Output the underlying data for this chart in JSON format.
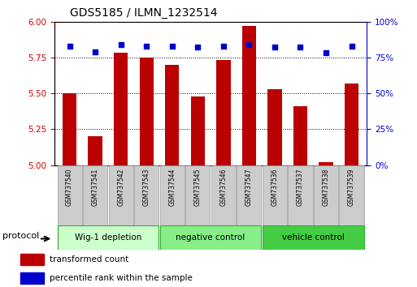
{
  "title": "GDS5185 / ILMN_1232514",
  "samples": [
    "GSM737540",
    "GSM737541",
    "GSM737542",
    "GSM737543",
    "GSM737544",
    "GSM737545",
    "GSM737546",
    "GSM737547",
    "GSM737536",
    "GSM737537",
    "GSM737538",
    "GSM737539"
  ],
  "bar_values": [
    5.5,
    5.2,
    5.78,
    5.75,
    5.7,
    5.48,
    5.73,
    5.97,
    5.53,
    5.41,
    5.02,
    5.57
  ],
  "dot_values": [
    83,
    79,
    84,
    83,
    83,
    82,
    83,
    84,
    82,
    82,
    78,
    83
  ],
  "bar_color": "#bb0000",
  "dot_color": "#0000cc",
  "ylim_left": [
    5.0,
    6.0
  ],
  "ylim_right": [
    0,
    100
  ],
  "yticks_left": [
    5.0,
    5.25,
    5.5,
    5.75,
    6.0
  ],
  "yticks_right": [
    0,
    25,
    50,
    75,
    100
  ],
  "ytick_labels_right": [
    "0%",
    "25%",
    "50%",
    "75%",
    "100%"
  ],
  "groups": [
    {
      "label": "Wig-1 depletion",
      "start": 0,
      "end": 3,
      "color": "#ccffcc"
    },
    {
      "label": "negative control",
      "start": 4,
      "end": 7,
      "color": "#88ee88"
    },
    {
      "label": "vehicle control",
      "start": 8,
      "end": 11,
      "color": "#44cc44"
    }
  ],
  "protocol_label": "protocol",
  "legend_bar_label": "transformed count",
  "legend_dot_label": "percentile rank within the sample",
  "grid_color": "#000000",
  "bar_width": 0.55,
  "left_tick_color": "#cc0000",
  "right_tick_color": "#0000cc",
  "group_border_color": "#33aa33",
  "xlabel_bg_color": "#cccccc",
  "fig_width": 5.13,
  "fig_height": 3.54,
  "dpi": 100
}
